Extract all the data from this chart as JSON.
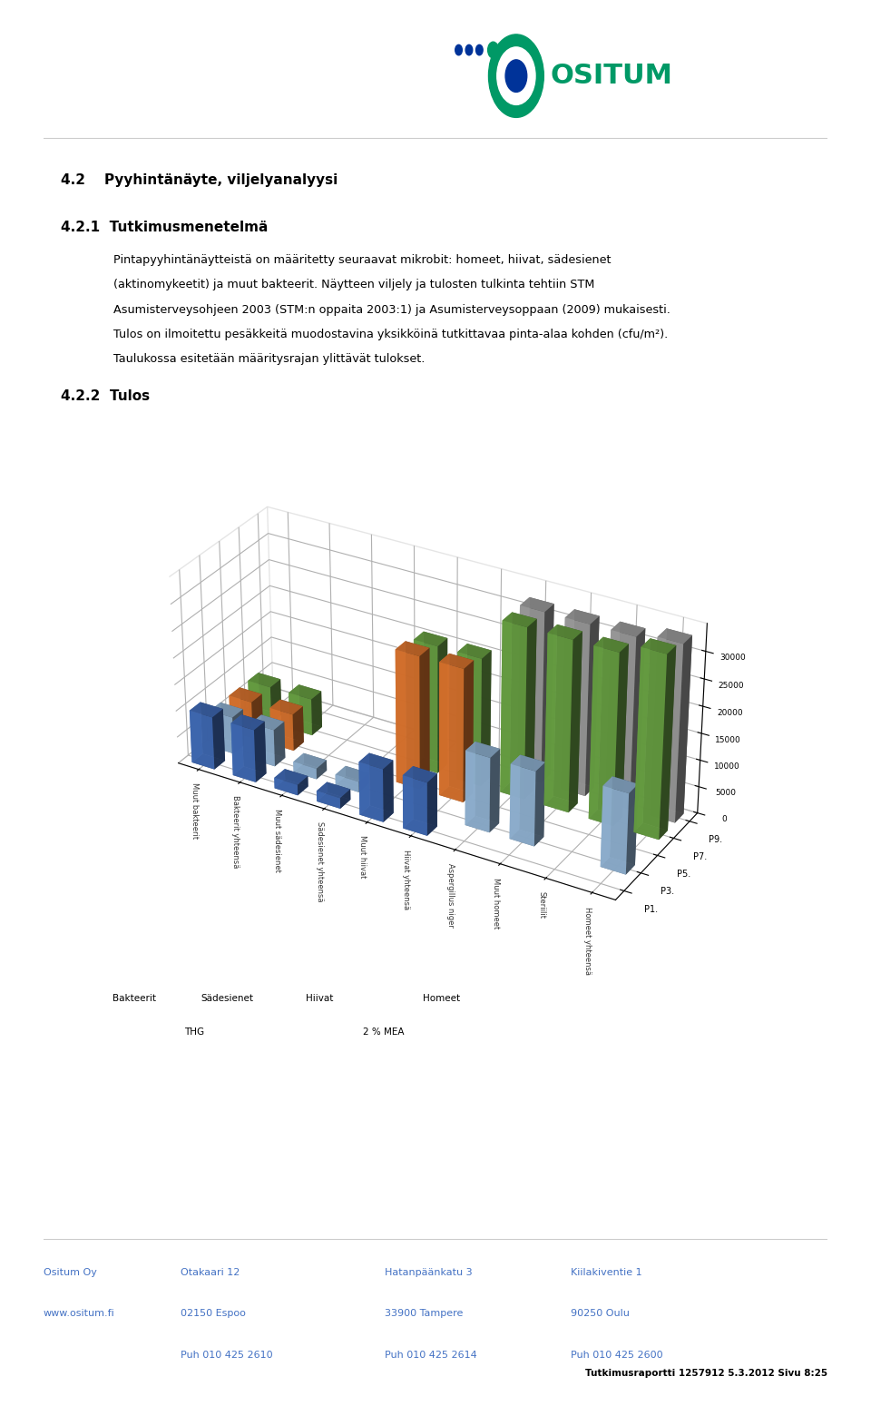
{
  "title_42": "4.2    Pyyhintänäyte, viljelyanalyysi",
  "title_421": "4.2.1  Tutkimusmenetelmä",
  "title_422": "4.2.2  Tulos",
  "body_lines": [
    "Pintapyyhintänäytteistä on määritetty seuraavat mikrobit: homeet, hiivat, sädesienet",
    "(aktinomykeetit) ja muut bakteerit. Näytteen viljely ja tulosten tulkinta tehtiin STM",
    "Asumisterveysohjeen 2003 (STM:n oppaita 2003:1) ja Asumisterveysoppaan (2009) mukaisesti.",
    "Tulos on ilmoitettu pesäkkeitä muodostavina yksikköinä tutkittavaa pinta-alaa kohden (cfu/m²).",
    "Taulukossa esitetään määritysrajan ylittävät tulokset."
  ],
  "series_labels": [
    "P1.",
    "P3.",
    "P5.",
    "P7.",
    "P9."
  ],
  "series_colors": [
    "#4472c4",
    "#9dc3e6",
    "#ed7d31",
    "#c55a11",
    "#70ad47",
    "#548235",
    "#ffc000",
    "#bf8f00",
    "#7030a0"
  ],
  "bar_colors_per_series": {
    "P1.": "#4472c4",
    "P3.": "#9dc3e6",
    "P5.": "#ed7d31",
    "P7.": "#70ad47",
    "P9.": "#a9a9a9"
  },
  "x_labels": [
    "Muut bakteerit",
    "Bakteerit yhteensä",
    "Muut sädesienet",
    "Sädesienet yhteensä",
    "Muut hiivat",
    "Hiivat yhteensä",
    "Aspergillus niger",
    "Muut homeet",
    "Steriilit",
    "Homeet yhteensä"
  ],
  "x_group_labels": [
    "Bakteerit",
    "Sädesienet",
    "Hiivat",
    "Homeet"
  ],
  "x_subgroup_labels": [
    "THG",
    "2 % MEA"
  ],
  "y_ticks": [
    0,
    5000,
    10000,
    15000,
    20000,
    25000,
    30000
  ],
  "data": {
    "P1.": [
      10000,
      10000,
      2000,
      2000,
      10000,
      10000,
      0,
      0,
      0,
      0
    ],
    "P3.": [
      7000,
      7000,
      2000,
      2000,
      0,
      0,
      14000,
      14000,
      0,
      15000
    ],
    "P5.": [
      7000,
      7000,
      0,
      0,
      25000,
      25000,
      0,
      0,
      0,
      0
    ],
    "P7.": [
      7000,
      7000,
      0,
      0,
      24000,
      24000,
      32000,
      32000,
      32000,
      34000
    ],
    "P9.": [
      0,
      0,
      0,
      0,
      0,
      0,
      32000,
      32000,
      32000,
      33000
    ]
  },
  "footer_color": "#4472c4",
  "footer_left": [
    "Ositum Oy",
    "www.ositum.fi"
  ],
  "footer_col2": [
    "Otakaari 12",
    "02150 Espoo",
    "Puh 010 425 2610"
  ],
  "footer_col3": [
    "Hatanpäänkatu 3",
    "33900 Tampere",
    "Puh 010 425 2614"
  ],
  "footer_col4": [
    "Kiilakiventie 1",
    "90250 Oulu",
    "Puh 010 425 2600"
  ],
  "footer_right": "Tutkimusraportti 1257912 5.3.2012 Sivu 8:25",
  "bg_color": "#ffffff"
}
